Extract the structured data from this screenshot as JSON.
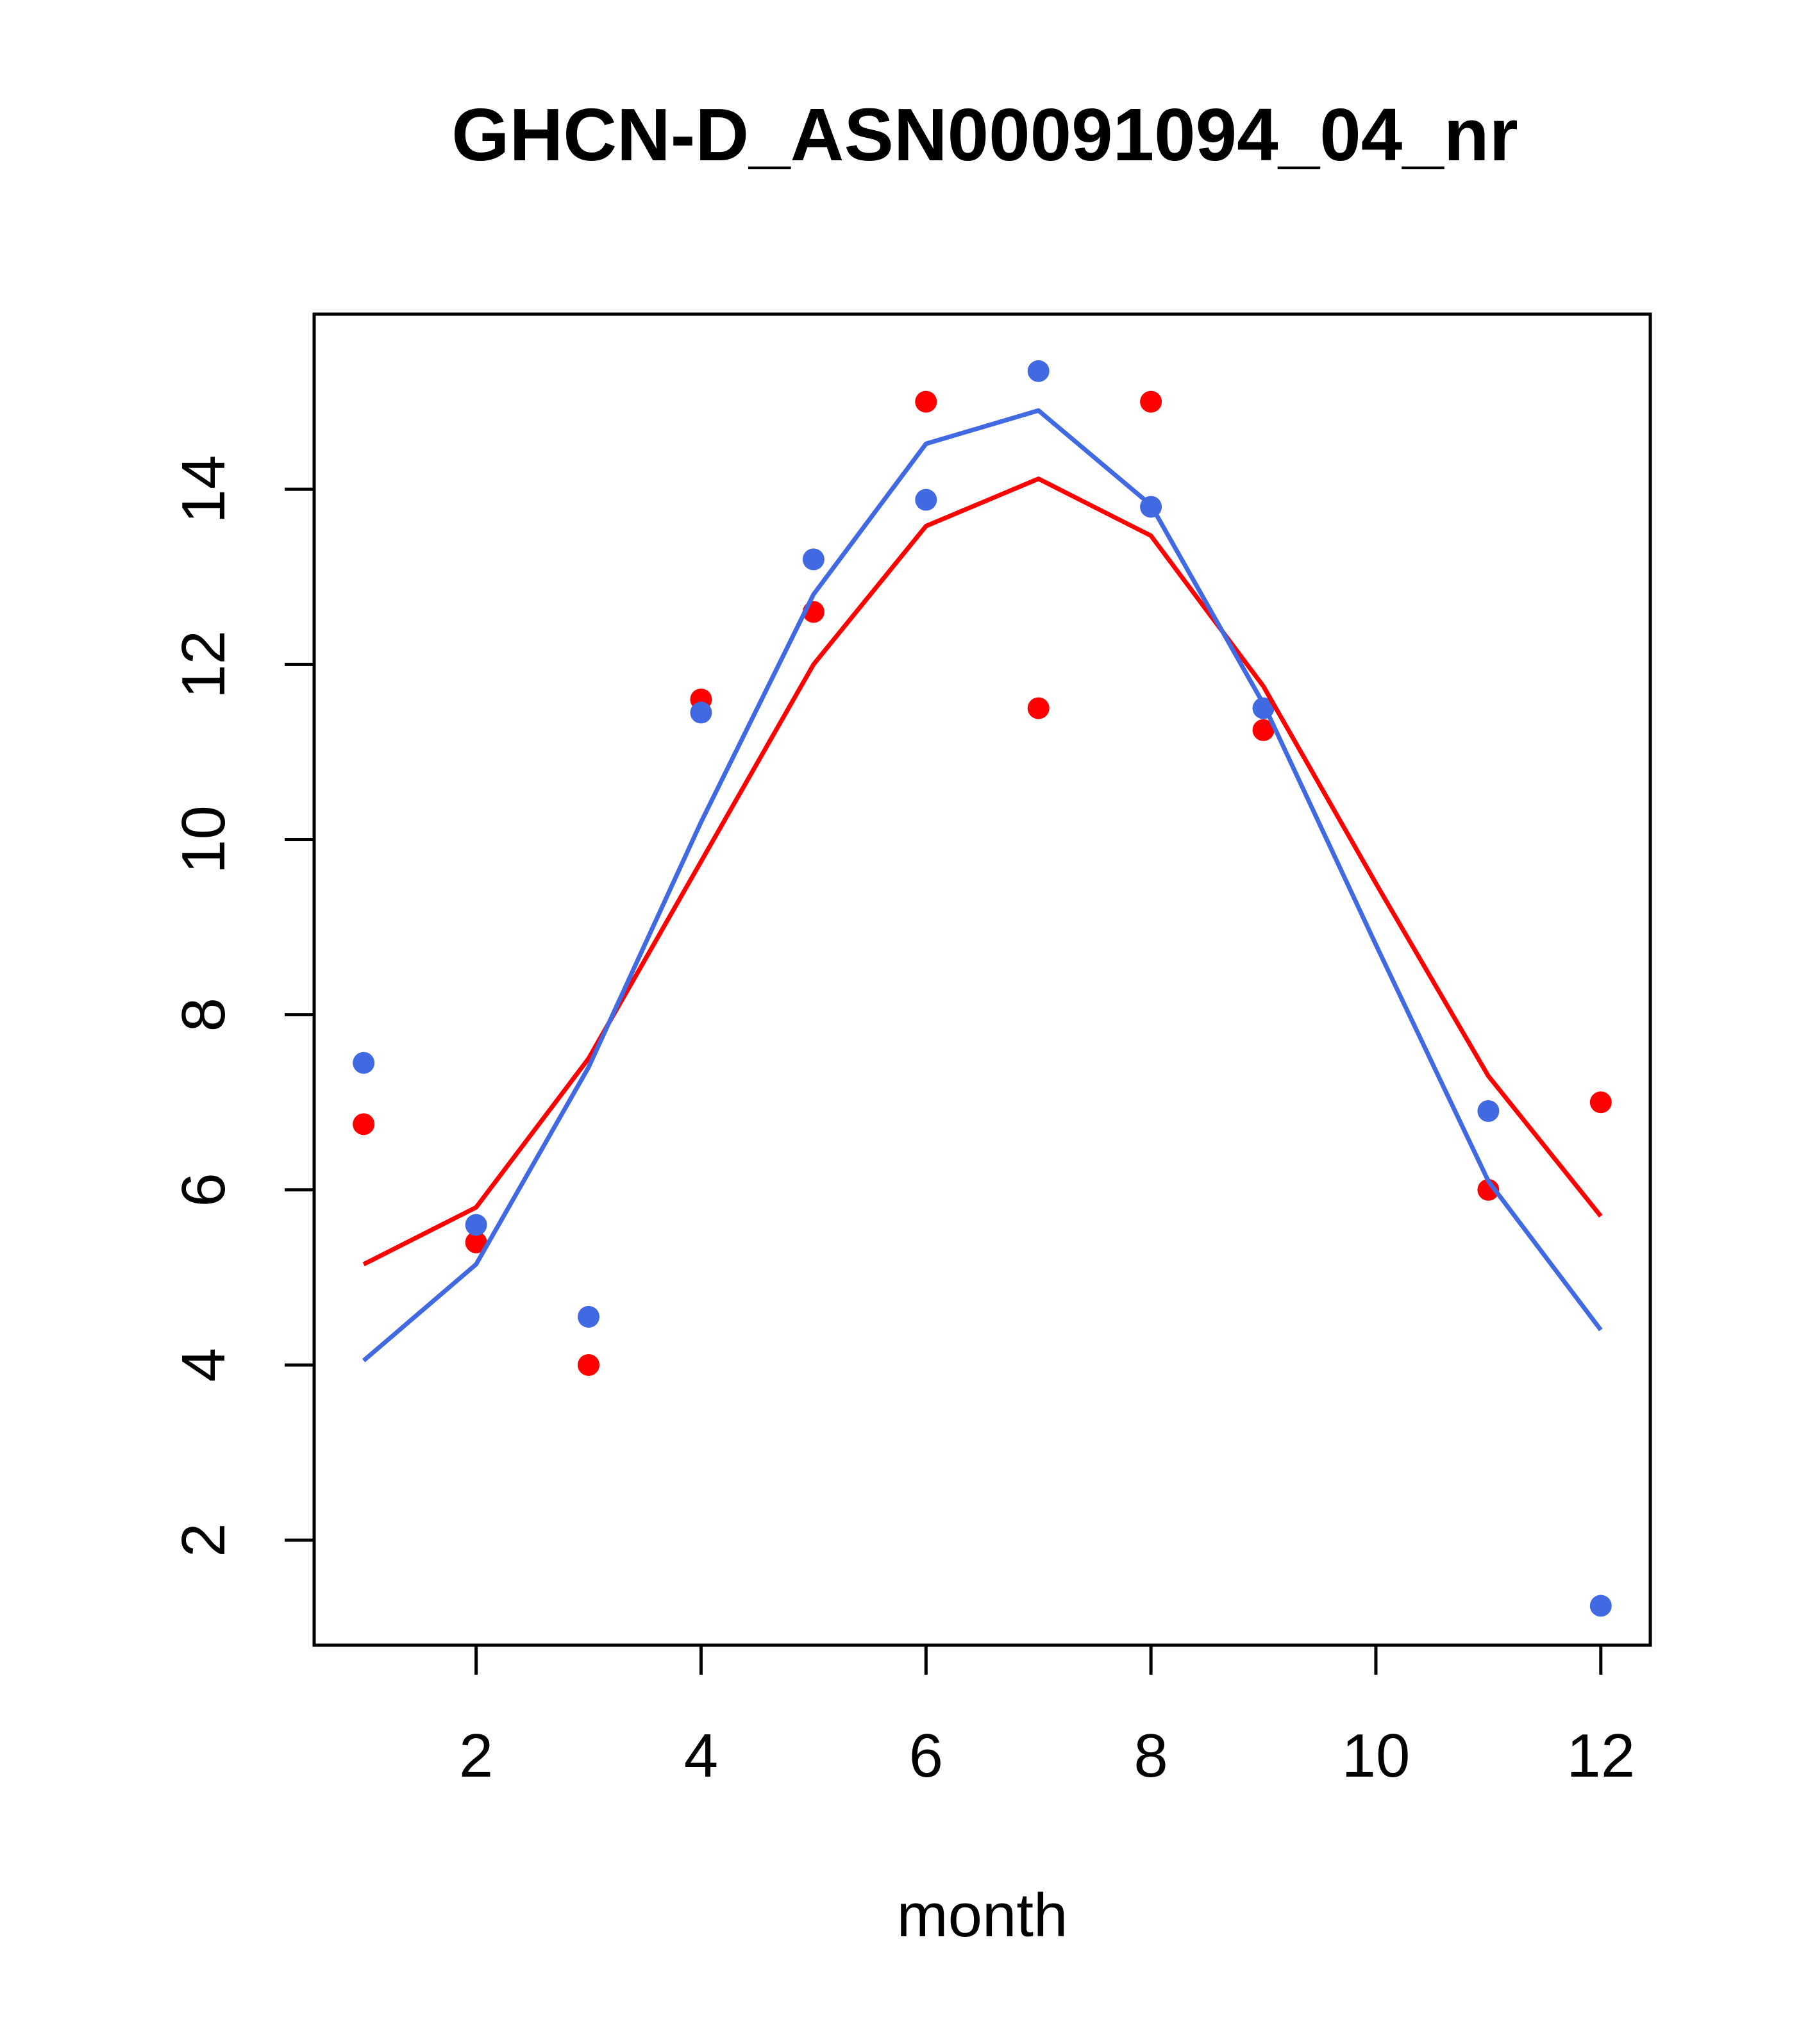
{
  "chart_data": {
    "type": "scatter",
    "title": "GHCN-D_ASN00091094_04_nr",
    "xlabel": "month",
    "ylabel": "",
    "xlim": [
      0.56,
      12.44
    ],
    "ylim": [
      0.8,
      16.0
    ],
    "x_ticks": [
      2,
      4,
      6,
      8,
      10,
      12
    ],
    "y_ticks": [
      2,
      4,
      6,
      8,
      10,
      12,
      14
    ],
    "grid": false,
    "legend": "none",
    "series": [
      {
        "kind": "points",
        "color": "#ff0000",
        "x": [
          1,
          2,
          3,
          4,
          5,
          6,
          7,
          8,
          9,
          11,
          12
        ],
        "y": [
          6.75,
          5.4,
          4.0,
          11.6,
          12.6,
          15.0,
          11.5,
          15.0,
          11.25,
          6.0,
          7.0
        ]
      },
      {
        "kind": "points",
        "color": "#4169e1",
        "x": [
          1,
          2,
          3,
          4,
          5,
          6,
          7,
          8,
          9,
          11,
          12
        ],
        "y": [
          7.45,
          5.6,
          4.55,
          11.45,
          13.2,
          13.88,
          15.35,
          13.8,
          11.5,
          6.9,
          1.25
        ]
      },
      {
        "kind": "line",
        "color": "#ff0000",
        "x": [
          1,
          2,
          3,
          4,
          5,
          6,
          7,
          8,
          9,
          10,
          11,
          12
        ],
        "y": [
          5.15,
          5.8,
          7.5,
          9.75,
          12.0,
          13.58,
          14.12,
          13.47,
          11.75,
          9.5,
          7.3,
          5.7
        ]
      },
      {
        "kind": "line",
        "color": "#4169e1",
        "x": [
          1,
          2,
          3,
          4,
          5,
          6,
          7,
          8,
          9,
          10,
          11,
          12
        ],
        "y": [
          4.05,
          5.15,
          7.4,
          10.2,
          12.8,
          14.52,
          14.9,
          13.82,
          11.55,
          8.8,
          6.1,
          4.4
        ]
      }
    ]
  }
}
